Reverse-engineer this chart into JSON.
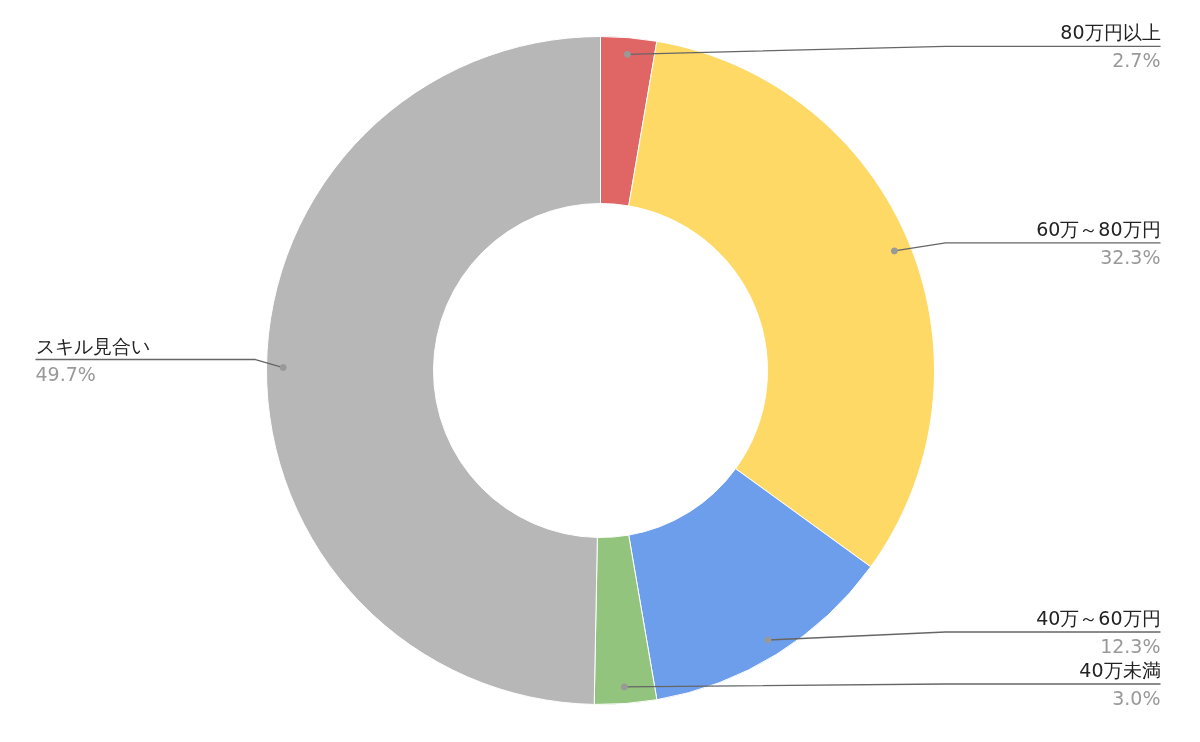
{
  "chart_data": {
    "type": "donut",
    "categories": [
      "80万円以上",
      "60万～80万円",
      "40万～60万円",
      "40万未満",
      "スキル見合い"
    ],
    "values": [
      2.7,
      32.3,
      12.3,
      3.0,
      49.7
    ],
    "colors": [
      "#e06666",
      "#ffd966",
      "#6d9eeb",
      "#93c47d",
      "#b7b7b7"
    ],
    "value_labels": [
      "2.7%",
      "32.3%",
      "12.3%",
      "3.0%",
      "49.7%"
    ]
  }
}
